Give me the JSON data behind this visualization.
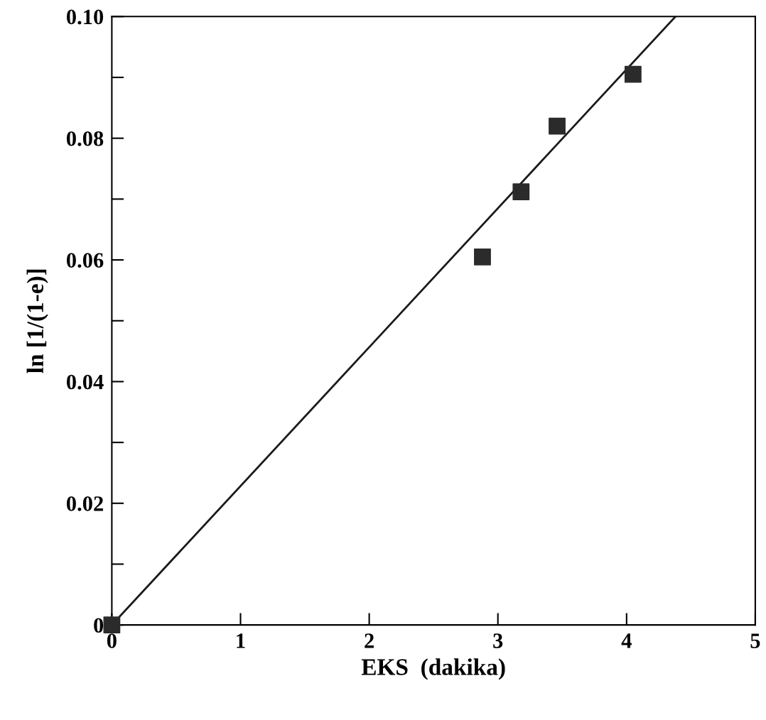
{
  "chart_data": {
    "type": "scatter",
    "xlabel": "EKS  (dakika)",
    "ylabel": "ln [1/(1-e)]",
    "xlim": [
      0,
      5
    ],
    "xticks": [
      0,
      1,
      2,
      3,
      4,
      5
    ],
    "ylim": [
      0,
      0.1
    ],
    "yticks": [
      0,
      0.02,
      0.04,
      0.06,
      0.08,
      {
        "value": 0.1,
        "label": "0.10"
      }
    ],
    "marker": "square",
    "grid": false,
    "legend": false,
    "series": [
      {
        "color": "#2b2b2b",
        "x": [
          0,
          2.88,
          3.18,
          3.46,
          4.05
        ],
        "values": [
          0,
          0.0605,
          0.0712,
          0.082,
          0.0905
        ]
      },
      {
        "type": "line",
        "color": "#1a1a1a",
        "marker": "none",
        "x": [
          0,
          4.38
        ],
        "values": [
          0,
          0.1
        ]
      }
    ]
  }
}
